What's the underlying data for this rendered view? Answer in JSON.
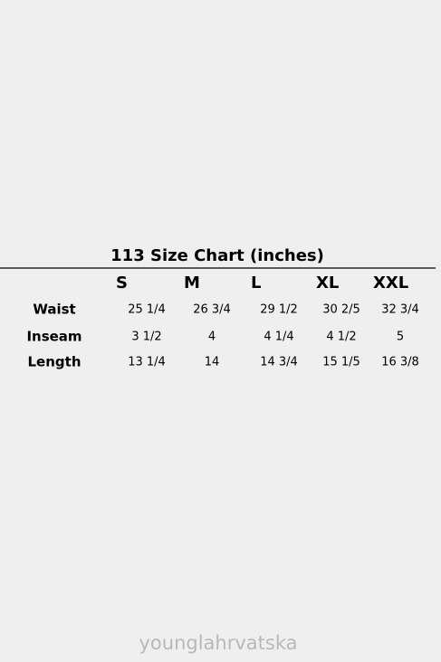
{
  "table": {
    "title": "113 Size Chart (inches)",
    "columns": [
      "S",
      "M",
      "L",
      "XL",
      "XXL"
    ],
    "rows": [
      {
        "label": "Waist",
        "cells": [
          "25 1/4",
          "26 3/4",
          "29 1/2",
          "30 2/5",
          "32 3/4"
        ]
      },
      {
        "label": "Inseam",
        "cells": [
          "3 1/2",
          "4",
          "4 1/4",
          "4 1/2",
          "5"
        ]
      },
      {
        "label": "Length",
        "cells": [
          "13 1/4",
          "14",
          "14 3/4",
          "15 1/5",
          "16 3/8"
        ]
      }
    ]
  },
  "watermark": "younglahrvatska"
}
